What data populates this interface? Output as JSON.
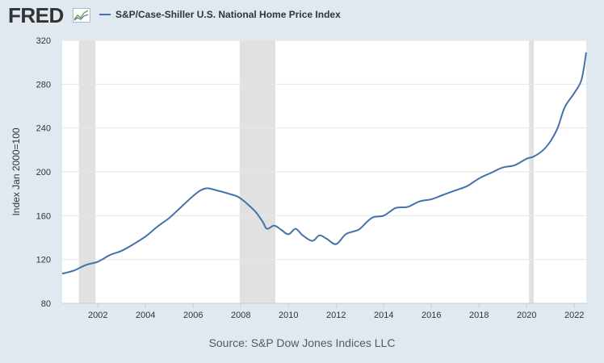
{
  "header": {
    "logo_text": "FRED",
    "legend_label": "S&P/Case-Shiller U.S. National Home Price Index",
    "series_color": "#4572a7"
  },
  "footer": {
    "source": "Source: S&P Dow Jones Indices LLC"
  },
  "chart_data": {
    "type": "line",
    "title": "S&P/Case-Shiller U.S. National Home Price Index",
    "ylabel": "Index Jan 2000=100",
    "xlabel": "",
    "xlim": [
      2000.5,
      2022.5
    ],
    "ylim": [
      80,
      320
    ],
    "yticks": [
      80,
      120,
      160,
      200,
      240,
      280,
      320
    ],
    "xticks": [
      2002,
      2004,
      2006,
      2008,
      2010,
      2012,
      2014,
      2016,
      2018,
      2020,
      2022
    ],
    "grid": true,
    "recessions": [
      [
        2001.2,
        2001.9
      ],
      [
        2007.95,
        2009.45
      ],
      [
        2020.1,
        2020.3
      ]
    ],
    "series": [
      {
        "name": "S&P/Case-Shiller U.S. National Home Price Index",
        "color": "#4572a7",
        "x": [
          2000.5,
          2001.0,
          2001.5,
          2002.0,
          2002.5,
          2003.0,
          2003.5,
          2004.0,
          2004.5,
          2005.0,
          2005.5,
          2006.0,
          2006.3,
          2006.6,
          2007.0,
          2007.5,
          2007.9,
          2008.2,
          2008.6,
          2008.9,
          2009.1,
          2009.4,
          2009.7,
          2010.0,
          2010.3,
          2010.6,
          2011.0,
          2011.3,
          2011.6,
          2012.0,
          2012.4,
          2012.8,
          2013.0,
          2013.5,
          2014.0,
          2014.5,
          2015.0,
          2015.5,
          2016.0,
          2016.5,
          2017.0,
          2017.5,
          2018.0,
          2018.5,
          2019.0,
          2019.5,
          2020.0,
          2020.3,
          2020.7,
          2021.0,
          2021.3,
          2021.6,
          2022.0,
          2022.3,
          2022.5
        ],
        "values": [
          107,
          110,
          115,
          118,
          124,
          128,
          134,
          141,
          150,
          158,
          168,
          178,
          183,
          185,
          183,
          180,
          177,
          172,
          164,
          155,
          148,
          151,
          147,
          143,
          148,
          142,
          137,
          142,
          139,
          134,
          143,
          146,
          148,
          158,
          160,
          167,
          168,
          173,
          175,
          179,
          183,
          187,
          194,
          199,
          204,
          206,
          212,
          214,
          220,
          228,
          240,
          259,
          272,
          284,
          309
        ]
      }
    ]
  }
}
